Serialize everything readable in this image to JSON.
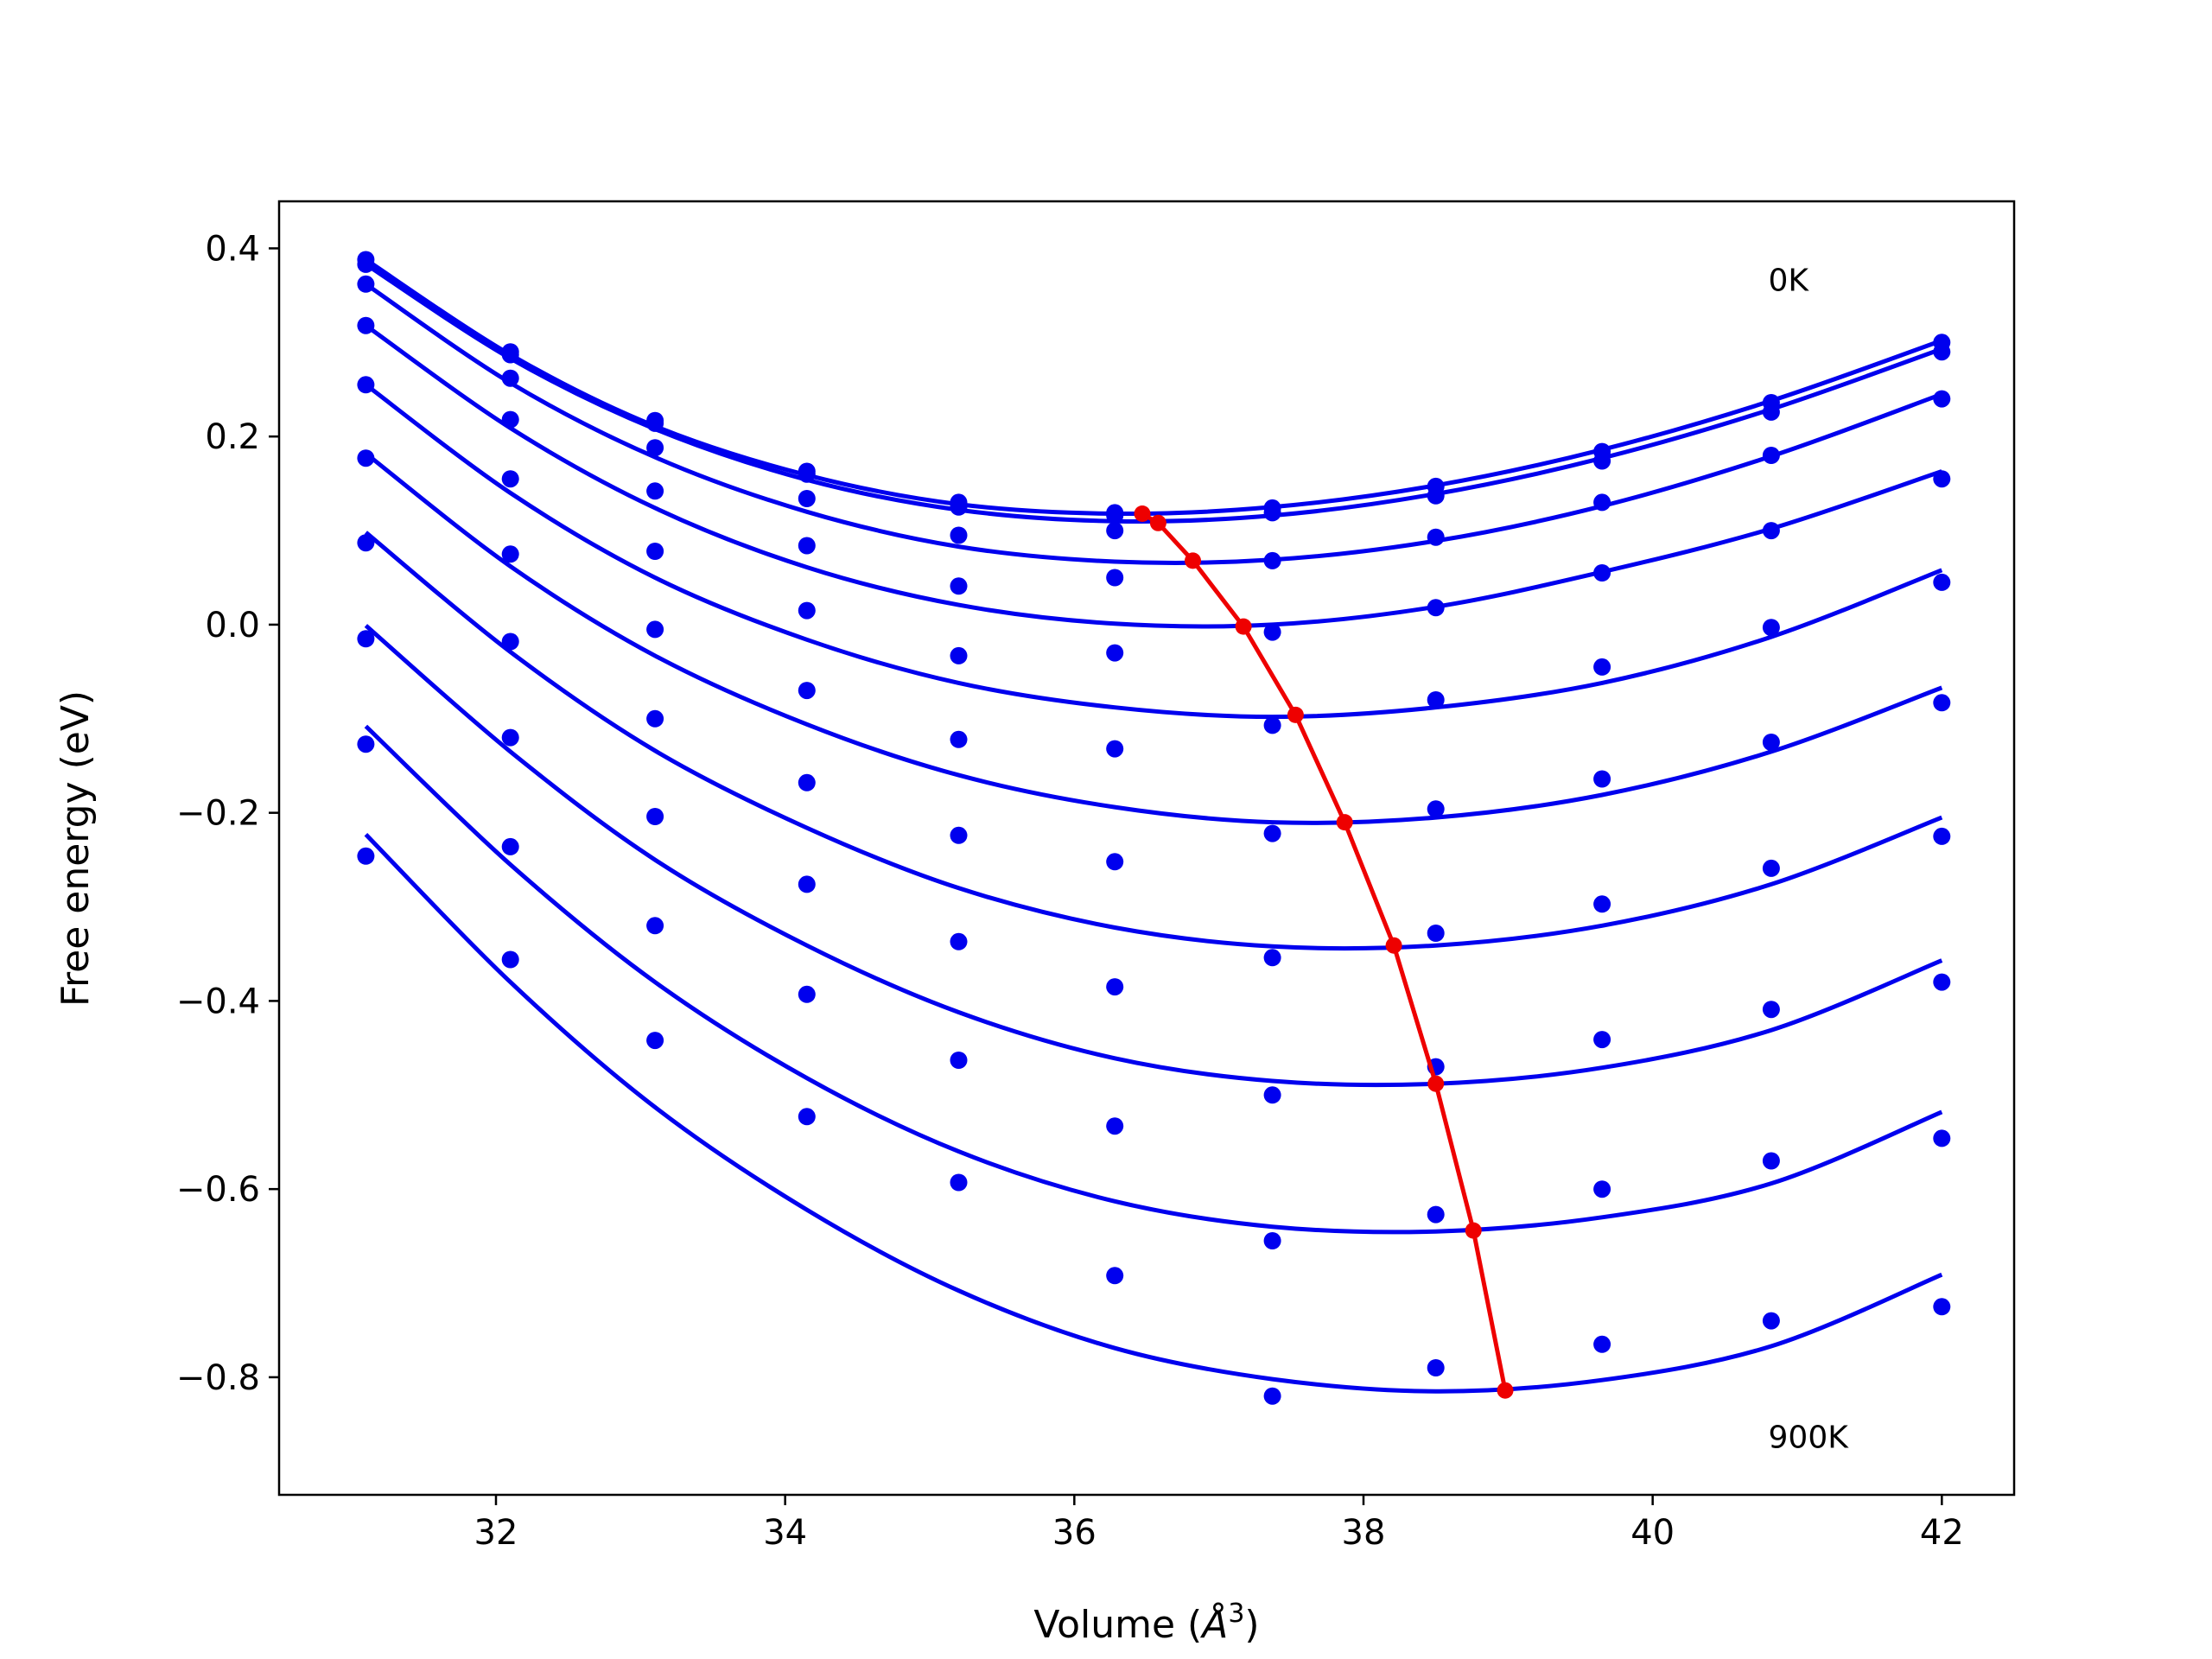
{
  "chart_data": {
    "type": "scatter",
    "title": "",
    "xlabel": "Volume (",
    "xlabel_unit_symbol": "Å",
    "xlabel_unit_exp": "3",
    "xlabel_close": ")",
    "ylabel": "Free energy (eV)",
    "xlim": [
      30.5,
      42.5
    ],
    "ylim": [
      -0.925,
      0.45
    ],
    "xticks": [
      32,
      34,
      36,
      38,
      40,
      42
    ],
    "xtick_labels": [
      "32",
      "34",
      "36",
      "38",
      "40",
      "42"
    ],
    "yticks": [
      0.4,
      0.2,
      0.0,
      -0.2,
      -0.4,
      -0.6,
      -0.8
    ],
    "ytick_labels": [
      "0.4",
      "0.2",
      "0.0",
      "−0.2",
      "−0.4",
      "−0.6",
      "−0.8"
    ],
    "grid": false,
    "legend": "none",
    "colors": {
      "series": "#0000ee",
      "minima": "#ee0000"
    },
    "annotations": [
      {
        "text": "0K",
        "x": 40.8,
        "y": 0.355
      },
      {
        "text": "900K",
        "x": 40.8,
        "y": -0.875
      }
    ],
    "volumes": [
      31.1,
      32.1,
      33.1,
      34.15,
      35.2,
      36.28,
      37.37,
      38.5,
      39.65,
      40.82,
      42.0
    ],
    "series": [
      {
        "points": [
          0.388,
          0.29,
          0.217,
          0.163,
          0.13,
          0.119,
          0.124,
          0.147,
          0.184,
          0.236,
          0.3
        ],
        "fit": [
          0.388,
          0.287,
          0.211,
          0.159,
          0.128,
          0.118,
          0.125,
          0.148,
          0.186,
          0.238,
          0.302
        ]
      },
      {
        "points": [
          0.383,
          0.287,
          0.214,
          0.16,
          0.125,
          0.116,
          0.119,
          0.137,
          0.174,
          0.226,
          0.29
        ],
        "fit": [
          0.383,
          0.283,
          0.208,
          0.154,
          0.122,
          0.11,
          0.116,
          0.139,
          0.177,
          0.229,
          0.293
        ]
      },
      {
        "points": [
          0.362,
          0.262,
          0.188,
          0.134,
          0.095,
          0.1,
          0.068,
          0.093,
          0.13,
          0.18,
          0.24
        ],
        "fit": [
          0.362,
          0.257,
          0.178,
          0.12,
          0.083,
          0.067,
          0.069,
          0.089,
          0.126,
          0.179,
          0.245
        ]
      },
      {
        "points": [
          0.318,
          0.218,
          0.142,
          0.084,
          0.041,
          0.05,
          -0.008,
          0.018,
          0.055,
          0.1,
          0.155
        ],
        "fit": [
          0.318,
          0.209,
          0.124,
          0.061,
          0.021,
          0.001,
          0.0,
          0.019,
          0.056,
          0.102,
          0.163
        ]
      },
      {
        "points": [
          0.255,
          0.155,
          0.078,
          0.015,
          -0.033,
          -0.03,
          -0.107,
          -0.08,
          -0.045,
          -0.003,
          0.045
        ],
        "fit": [
          0.255,
          0.14,
          0.05,
          -0.016,
          -0.062,
          -0.088,
          -0.098,
          -0.088,
          -0.062,
          -0.013,
          0.058
        ]
      },
      {
        "points": [
          0.177,
          0.075,
          -0.005,
          -0.07,
          -0.122,
          -0.132,
          -0.222,
          -0.196,
          -0.164,
          -0.125,
          -0.083
        ],
        "fit": [
          0.182,
          0.062,
          -0.033,
          -0.106,
          -0.16,
          -0.194,
          -0.21,
          -0.205,
          -0.181,
          -0.135,
          -0.067
        ]
      },
      {
        "points": [
          0.087,
          -0.018,
          -0.1,
          -0.168,
          -0.224,
          -0.252,
          -0.354,
          -0.328,
          -0.297,
          -0.259,
          -0.225
        ],
        "fit": [
          0.098,
          -0.029,
          -0.134,
          -0.216,
          -0.28,
          -0.322,
          -0.342,
          -0.341,
          -0.32,
          -0.276,
          -0.205
        ]
      },
      {
        "points": [
          -0.015,
          -0.12,
          -0.204,
          -0.276,
          -0.337,
          -0.385,
          -0.5,
          -0.47,
          -0.441,
          -0.409,
          -0.38
        ],
        "fit": [
          -0.001,
          -0.135,
          -0.25,
          -0.341,
          -0.412,
          -0.461,
          -0.485,
          -0.488,
          -0.471,
          -0.431,
          -0.357
        ]
      },
      {
        "points": [
          -0.127,
          -0.236,
          -0.32,
          -0.393,
          -0.463,
          -0.533,
          -0.655,
          -0.627,
          -0.6,
          -0.57,
          -0.546
        ],
        "fit": [
          -0.108,
          -0.255,
          -0.38,
          -0.482,
          -0.56,
          -0.613,
          -0.64,
          -0.645,
          -0.63,
          -0.594,
          -0.518
        ]
      },
      {
        "points": [
          -0.246,
          -0.356,
          -0.442,
          -0.523,
          -0.593,
          -0.692,
          -0.82,
          -0.79,
          -0.765,
          -0.74,
          -0.725
        ],
        "fit": [
          -0.223,
          -0.38,
          -0.513,
          -0.622,
          -0.708,
          -0.769,
          -0.802,
          -0.815,
          -0.803,
          -0.767,
          -0.691
        ]
      }
    ],
    "minima": {
      "x": [
        36.47,
        36.58,
        36.82,
        37.17,
        37.53,
        37.87,
        38.21,
        38.5,
        38.76,
        38.98
      ],
      "y": [
        0.118,
        0.108,
        0.068,
        -0.002,
        -0.096,
        -0.21,
        -0.341,
        -0.488,
        -0.644,
        -0.814
      ]
    }
  }
}
